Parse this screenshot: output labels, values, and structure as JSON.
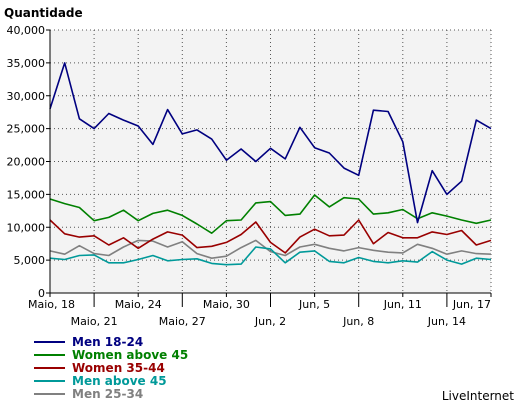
{
  "chart_data": {
    "type": "line",
    "title": "",
    "ylabel": "Quantidade",
    "xlabel": "",
    "ylim": [
      0,
      40000
    ],
    "yticks": [
      0,
      5000,
      10000,
      15000,
      20000,
      25000,
      30000,
      35000,
      40000
    ],
    "ytick_labels": [
      "0",
      "5,000",
      "10,000",
      "15,000",
      "20,000",
      "25,000",
      "30,000",
      "35,000",
      "40,000"
    ],
    "grid": true,
    "legend_position": "bottom-left",
    "x_start": "2009-05-18",
    "xticks": [
      {
        "date": "2009-05-18",
        "label": "Maio, 18",
        "row": 1
      },
      {
        "date": "2009-05-21",
        "label": "Maio, 21",
        "row": 2
      },
      {
        "date": "2009-05-24",
        "label": "Maio, 24",
        "row": 1
      },
      {
        "date": "2009-05-27",
        "label": "Maio, 27",
        "row": 2
      },
      {
        "date": "2009-05-30",
        "label": "Maio, 30",
        "row": 1
      },
      {
        "date": "2009-06-02",
        "label": "Jun, 2",
        "row": 2
      },
      {
        "date": "2009-06-05",
        "label": "Jun, 5",
        "row": 1
      },
      {
        "date": "2009-06-08",
        "label": "Jun, 8",
        "row": 2
      },
      {
        "date": "2009-06-11",
        "label": "Jun, 11",
        "row": 1
      },
      {
        "date": "2009-06-14",
        "label": "Jun, 14",
        "row": 2
      },
      {
        "date": "2009-06-17",
        "label": "Jun, 17",
        "row": 1
      }
    ],
    "series": [
      {
        "name": "Men 18-24",
        "color": "#000080",
        "values": [
          28000,
          35000,
          26500,
          25000,
          27300,
          26300,
          25400,
          22600,
          27900,
          24200,
          24800,
          23400,
          20200,
          21900,
          20000,
          22000,
          20400,
          25200,
          22100,
          21300,
          19000,
          17900,
          27800,
          27600,
          23000,
          10700,
          18600,
          15000,
          17000,
          26300,
          25000
        ]
      },
      {
        "name": "Women above 45",
        "color": "#008000",
        "values": [
          14300,
          13600,
          13000,
          11000,
          11500,
          12600,
          11000,
          12100,
          12600,
          11800,
          10500,
          9100,
          11000,
          11100,
          13700,
          13900,
          11800,
          12000,
          14900,
          13100,
          14500,
          14300,
          12000,
          12200,
          12700,
          11300,
          12200,
          11700,
          11100,
          10600,
          11100
        ]
      },
      {
        "name": "Women 35-44",
        "color": "#990000",
        "values": [
          11100,
          9000,
          8500,
          8700,
          7300,
          8400,
          6800,
          8200,
          9300,
          8800,
          6900,
          7100,
          7700,
          8900,
          10800,
          7700,
          6100,
          8500,
          9700,
          8700,
          8800,
          11100,
          7500,
          9200,
          8400,
          8400,
          9300,
          8900,
          9500,
          7300,
          8000
        ]
      },
      {
        "name": "Men above 45",
        "color": "#009999",
        "values": [
          5300,
          5100,
          5700,
          5800,
          4600,
          4600,
          5100,
          5700,
          4900,
          5100,
          5200,
          4500,
          4300,
          4400,
          7000,
          6700,
          4600,
          6200,
          6400,
          4800,
          4600,
          5400,
          4800,
          4600,
          4900,
          4700,
          6300,
          5000,
          4400,
          5300,
          5100
        ]
      },
      {
        "name": "Men 25-34",
        "color": "#808080",
        "values": [
          6400,
          5900,
          7200,
          6000,
          5700,
          7000,
          8000,
          7900,
          7000,
          7800,
          6000,
          5300,
          5600,
          6900,
          8000,
          6300,
          5700,
          7000,
          7400,
          6800,
          6400,
          6900,
          6500,
          6200,
          6100,
          7400,
          6800,
          5900,
          6400,
          6000,
          5900
        ]
      }
    ],
    "annotation": "LiveInternet"
  }
}
